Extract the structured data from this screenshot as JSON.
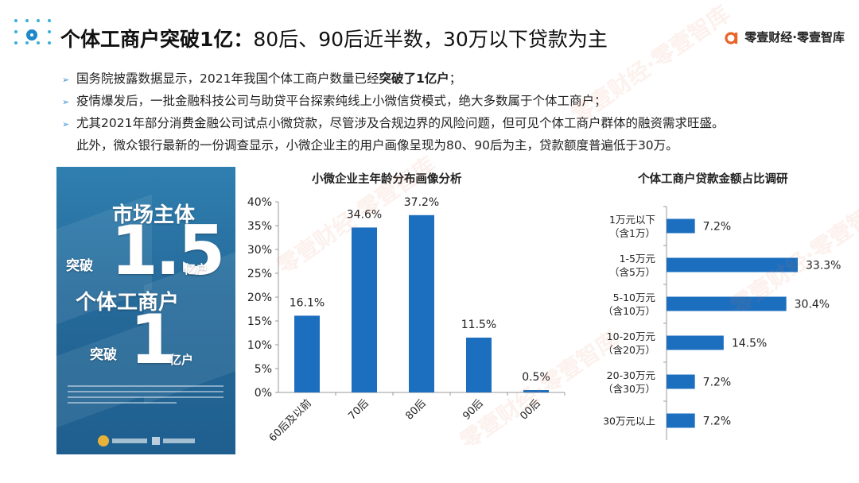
{
  "header": {
    "title_bold": "个体工商户突破1亿：",
    "title_rest": "80后、90后近半数，30万以下贷款为主",
    "brand": "零壹财经·零壹智库"
  },
  "bullets": [
    {
      "pre": "国务院披露数据显示，2021年我国个体工商户数量已经",
      "bold": "突破了1亿户",
      "post": "；"
    },
    {
      "pre": "疫情爆发后，一批金融科技公司与助贷平台探索纯线上小微信贷模式，绝大多数属于个体工商户；",
      "bold": "",
      "post": ""
    },
    {
      "pre": "尤其2021年部分消费金融公司试点小微贷款，尽管涉及合规边界的风险问题，但可见个体工商户群体的融资需求旺盛。",
      "bold": "",
      "post": ""
    }
  ],
  "bullet_continuation": "此外，微众银行最新的一份调查显示，小微企业主的用户画像呈现为80、90后为主，贷款额度普遍低于30万。",
  "poster": {
    "line1": "市场主体",
    "num1": "1.5",
    "pre1": "突破",
    "unit1": "亿户",
    "line2": "个体工商户",
    "num2": "1",
    "pre2": "突破",
    "unit2": "亿户"
  },
  "watermark": "零壹财经·零壹智库",
  "colors": {
    "bar": "#1c6fbf",
    "accent": "#1e88c9"
  },
  "chart_data": [
    {
      "type": "bar",
      "title": "小微企业主年龄分布画像分析",
      "categories": [
        "60后及以前",
        "70后",
        "80后",
        "90后",
        "00后"
      ],
      "values": [
        16.1,
        34.6,
        37.2,
        11.5,
        0.5
      ],
      "value_labels": [
        "16.1%",
        "34.6%",
        "37.2%",
        "11.5%",
        "0.5%"
      ],
      "ylim": [
        0,
        40
      ],
      "yticks": [
        "0%",
        "5%",
        "10%",
        "15%",
        "20%",
        "25%",
        "30%",
        "35%",
        "40%"
      ],
      "grid": false
    },
    {
      "type": "bar",
      "orientation": "horizontal",
      "title": "个体工商户贷款金额占比调研",
      "categories": [
        [
          "1万元以下",
          "（含1万）"
        ],
        [
          "1-5万元",
          "（含5万）"
        ],
        [
          "5-10万元",
          "（含10万）"
        ],
        [
          "10-20万元",
          "（含20万）"
        ],
        [
          "20-30万元",
          "（含30万）"
        ],
        [
          "30万元以上"
        ]
      ],
      "values": [
        7.2,
        33.3,
        30.4,
        14.5,
        7.2,
        7.2
      ],
      "value_labels": [
        "7.2%",
        "33.3%",
        "30.4%",
        "14.5%",
        "7.2%",
        "7.2%"
      ],
      "grid": false
    }
  ]
}
